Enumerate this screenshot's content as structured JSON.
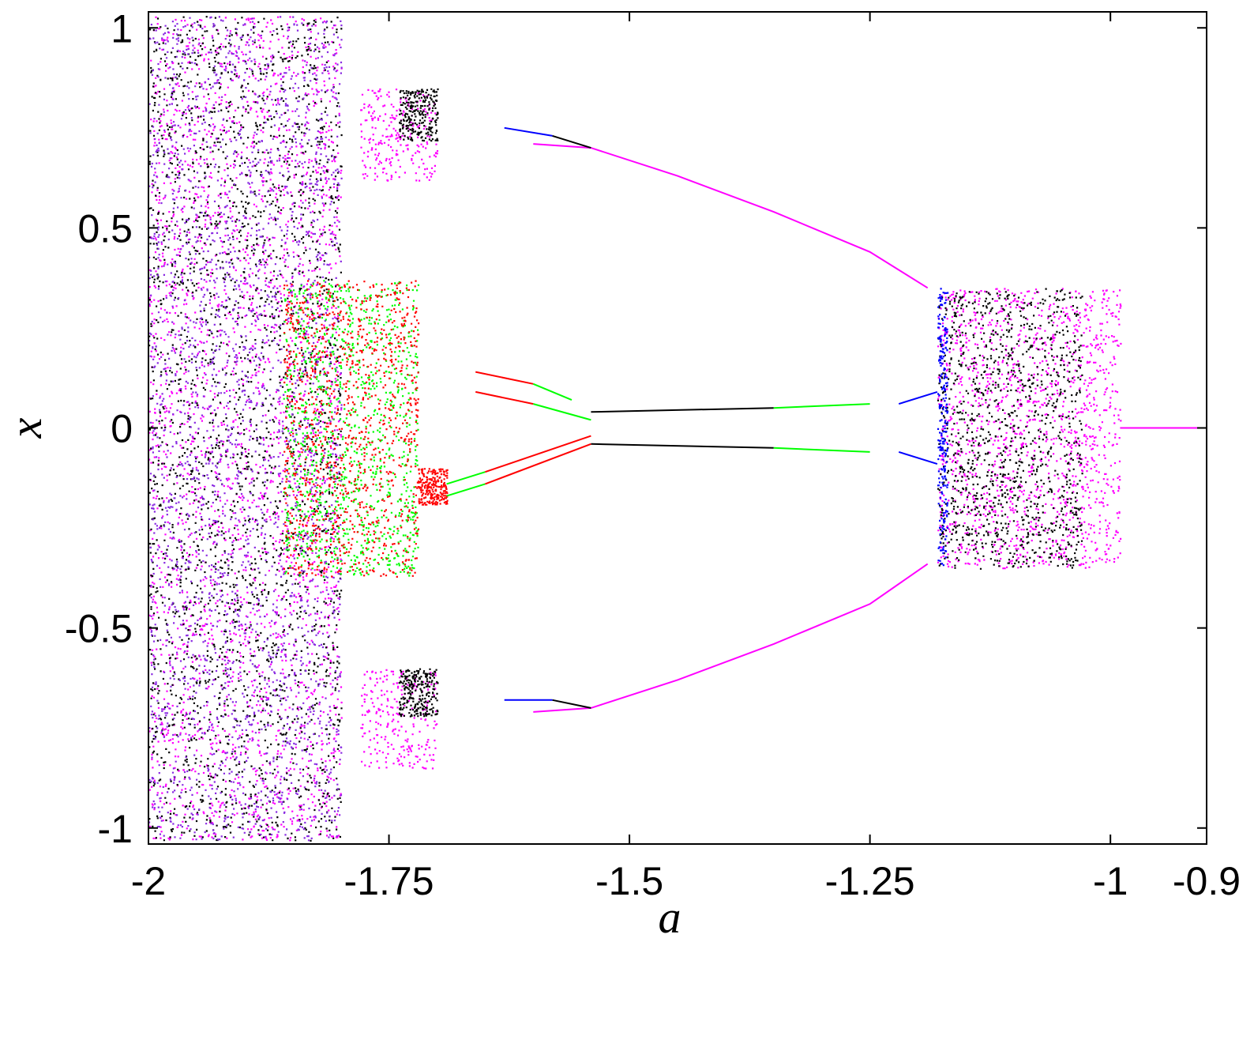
{
  "chart_data": {
    "type": "scatter",
    "title": "",
    "xlabel": "a",
    "ylabel": "x",
    "xlim": [
      -2,
      -0.9
    ],
    "ylim": [
      -1.04,
      1.04
    ],
    "grid": false,
    "legend": "none",
    "x_ticks": [
      -2,
      -1.75,
      -1.5,
      -1.25,
      -1,
      -0.9
    ],
    "x_tick_labels": [
      "-2",
      "-1.75",
      "-1.5",
      "-1.25",
      "-1",
      "-0.9"
    ],
    "y_ticks": [
      1,
      0.5,
      0,
      -0.5,
      -1
    ],
    "y_tick_labels": [
      "1",
      "0.5",
      "0",
      "-0.5",
      "-1"
    ],
    "colors": {
      "magenta": "#ff00ff",
      "black": "#000000",
      "red": "#ff0000",
      "green": "#00ff00",
      "blue": "#0000ff",
      "purple": "#8a2be2"
    },
    "series": [
      {
        "color": "magenta",
        "points": [
          [
            -1.6,
            0.71
          ],
          [
            -1.54,
            0.7
          ],
          [
            -1.45,
            0.63
          ],
          [
            -1.35,
            0.54
          ],
          [
            -1.25,
            0.44
          ],
          [
            -1.19,
            0.35
          ]
        ]
      },
      {
        "color": "magenta",
        "points": [
          [
            -1.6,
            -0.71
          ],
          [
            -1.54,
            -0.7
          ],
          [
            -1.45,
            -0.63
          ],
          [
            -1.35,
            -0.54
          ],
          [
            -1.25,
            -0.44
          ],
          [
            -1.19,
            -0.34
          ]
        ]
      },
      {
        "color": "magenta",
        "points": [
          [
            -0.99,
            0
          ],
          [
            -0.9,
            0
          ]
        ]
      },
      {
        "color": "black",
        "points": [
          [
            -1.54,
            0.04
          ],
          [
            -1.35,
            0.05
          ]
        ]
      },
      {
        "color": "green",
        "points": [
          [
            -1.35,
            0.05
          ],
          [
            -1.25,
            0.06
          ]
        ]
      },
      {
        "color": "black",
        "points": [
          [
            -1.54,
            -0.04
          ],
          [
            -1.35,
            -0.05
          ]
        ]
      },
      {
        "color": "green",
        "points": [
          [
            -1.35,
            -0.05
          ],
          [
            -1.25,
            -0.06
          ]
        ]
      },
      {
        "color": "blue",
        "points": [
          [
            -1.22,
            0.06
          ],
          [
            -1.18,
            0.09
          ]
        ]
      },
      {
        "color": "blue",
        "points": [
          [
            -1.22,
            -0.06
          ],
          [
            -1.18,
            -0.09
          ]
        ]
      },
      {
        "color": "blue",
        "points": [
          [
            -1.63,
            0.75
          ],
          [
            -1.58,
            0.73
          ]
        ]
      },
      {
        "color": "black",
        "points": [
          [
            -1.58,
            0.73
          ],
          [
            -1.54,
            0.7
          ]
        ]
      },
      {
        "color": "blue",
        "points": [
          [
            -1.63,
            -0.68
          ],
          [
            -1.58,
            -0.68
          ]
        ]
      },
      {
        "color": "black",
        "points": [
          [
            -1.58,
            -0.68
          ],
          [
            -1.54,
            -0.7
          ]
        ]
      },
      {
        "color": "red",
        "points": [
          [
            -1.66,
            0.14
          ],
          [
            -1.6,
            0.11
          ]
        ]
      },
      {
        "color": "green",
        "points": [
          [
            -1.6,
            0.11
          ],
          [
            -1.56,
            0.07
          ]
        ]
      },
      {
        "color": "red",
        "points": [
          [
            -1.66,
            0.09
          ],
          [
            -1.6,
            0.06
          ]
        ]
      },
      {
        "color": "green",
        "points": [
          [
            -1.6,
            0.06
          ],
          [
            -1.54,
            0.02
          ]
        ]
      },
      {
        "color": "green",
        "points": [
          [
            -1.69,
            -0.14
          ],
          [
            -1.65,
            -0.11
          ]
        ]
      },
      {
        "color": "red",
        "points": [
          [
            -1.65,
            -0.11
          ],
          [
            -1.54,
            -0.02
          ]
        ]
      },
      {
        "color": "green",
        "points": [
          [
            -1.69,
            -0.17
          ],
          [
            -1.65,
            -0.14
          ]
        ]
      },
      {
        "color": "red",
        "points": [
          [
            -1.65,
            -0.14
          ],
          [
            -1.54,
            -0.04
          ]
        ]
      }
    ],
    "point_clouds": [
      {
        "color": "magenta",
        "a_range": [
          -2,
          -1.8
        ],
        "x_range": [
          -1.03,
          1.03
        ]
      },
      {
        "color": "black",
        "a_range": [
          -2,
          -1.8
        ],
        "x_range": [
          -1.03,
          1.03
        ]
      },
      {
        "color": "purple",
        "a_range": [
          -2,
          -1.8
        ],
        "x_range": [
          -1.03,
          1.03
        ]
      },
      {
        "color": "green",
        "a_range": [
          -1.86,
          -1.72
        ],
        "x_range": [
          -0.37,
          0.37
        ]
      },
      {
        "color": "red",
        "a_range": [
          -1.86,
          -1.72
        ],
        "x_range": [
          -0.37,
          0.37
        ]
      },
      {
        "color": "magenta",
        "a_range": [
          -1.78,
          -1.7
        ],
        "x_range": [
          0.62,
          0.85
        ]
      },
      {
        "color": "black",
        "a_range": [
          -1.74,
          -1.7
        ],
        "x_range": [
          0.72,
          0.85
        ]
      },
      {
        "color": "magenta",
        "a_range": [
          -1.78,
          -1.7
        ],
        "x_range": [
          -0.85,
          -0.6
        ]
      },
      {
        "color": "black",
        "a_range": [
          -1.74,
          -1.7
        ],
        "x_range": [
          -0.72,
          -0.6
        ]
      },
      {
        "color": "red",
        "a_range": [
          -1.72,
          -1.69
        ],
        "x_range": [
          -0.19,
          -0.1
        ]
      },
      {
        "color": "magenta",
        "a_range": [
          -1.18,
          -0.99
        ],
        "x_range": [
          -0.35,
          0.35
        ]
      },
      {
        "color": "black",
        "a_range": [
          -1.18,
          -1.03
        ],
        "x_range": [
          -0.35,
          0.35
        ]
      },
      {
        "color": "blue",
        "a_range": [
          -1.18,
          -1.17
        ],
        "x_range": [
          -0.35,
          0.35
        ]
      }
    ]
  }
}
